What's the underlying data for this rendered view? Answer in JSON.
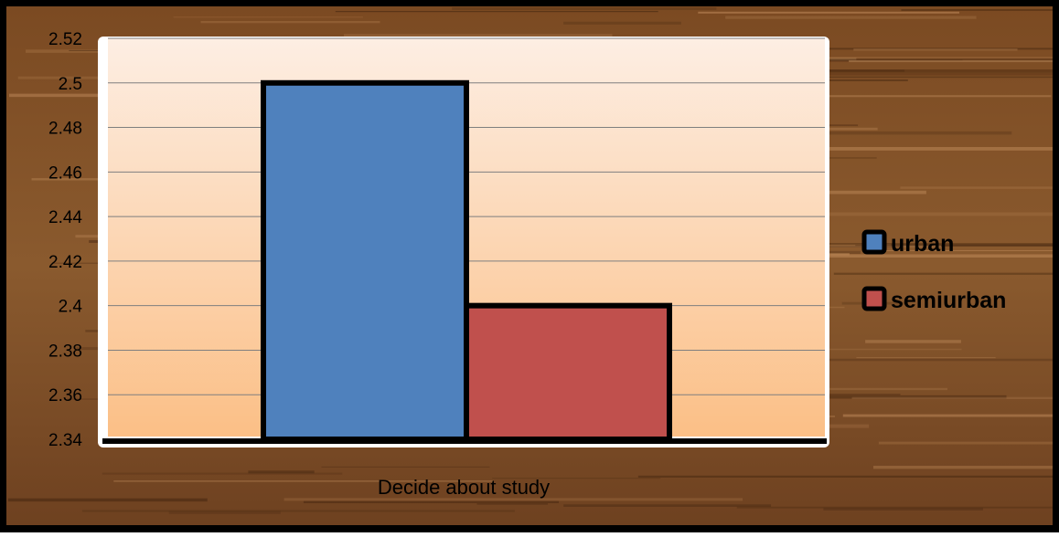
{
  "chart_data": {
    "type": "bar",
    "categories": [
      "Decide about study"
    ],
    "series": [
      {
        "name": "urban",
        "values": [
          2.5
        ],
        "color": "#4F81BD"
      },
      {
        "name": "semiurban",
        "values": [
          2.4
        ],
        "color": "#C0504D"
      }
    ],
    "xlabel": "",
    "ylabel": "",
    "ylim": [
      2.34,
      2.52
    ],
    "yticks": [
      "2.34",
      "2.36",
      "2.38",
      "2.4",
      "2.42",
      "2.44",
      "2.46",
      "2.48",
      "2.5",
      "2.52"
    ],
    "grid": true,
    "legend_position": "right",
    "colors": {
      "plot_gradient_top": "#FDEEE3",
      "plot_gradient_bottom": "#FBBF86",
      "background": "#7A4A22",
      "border": "#000000"
    }
  }
}
